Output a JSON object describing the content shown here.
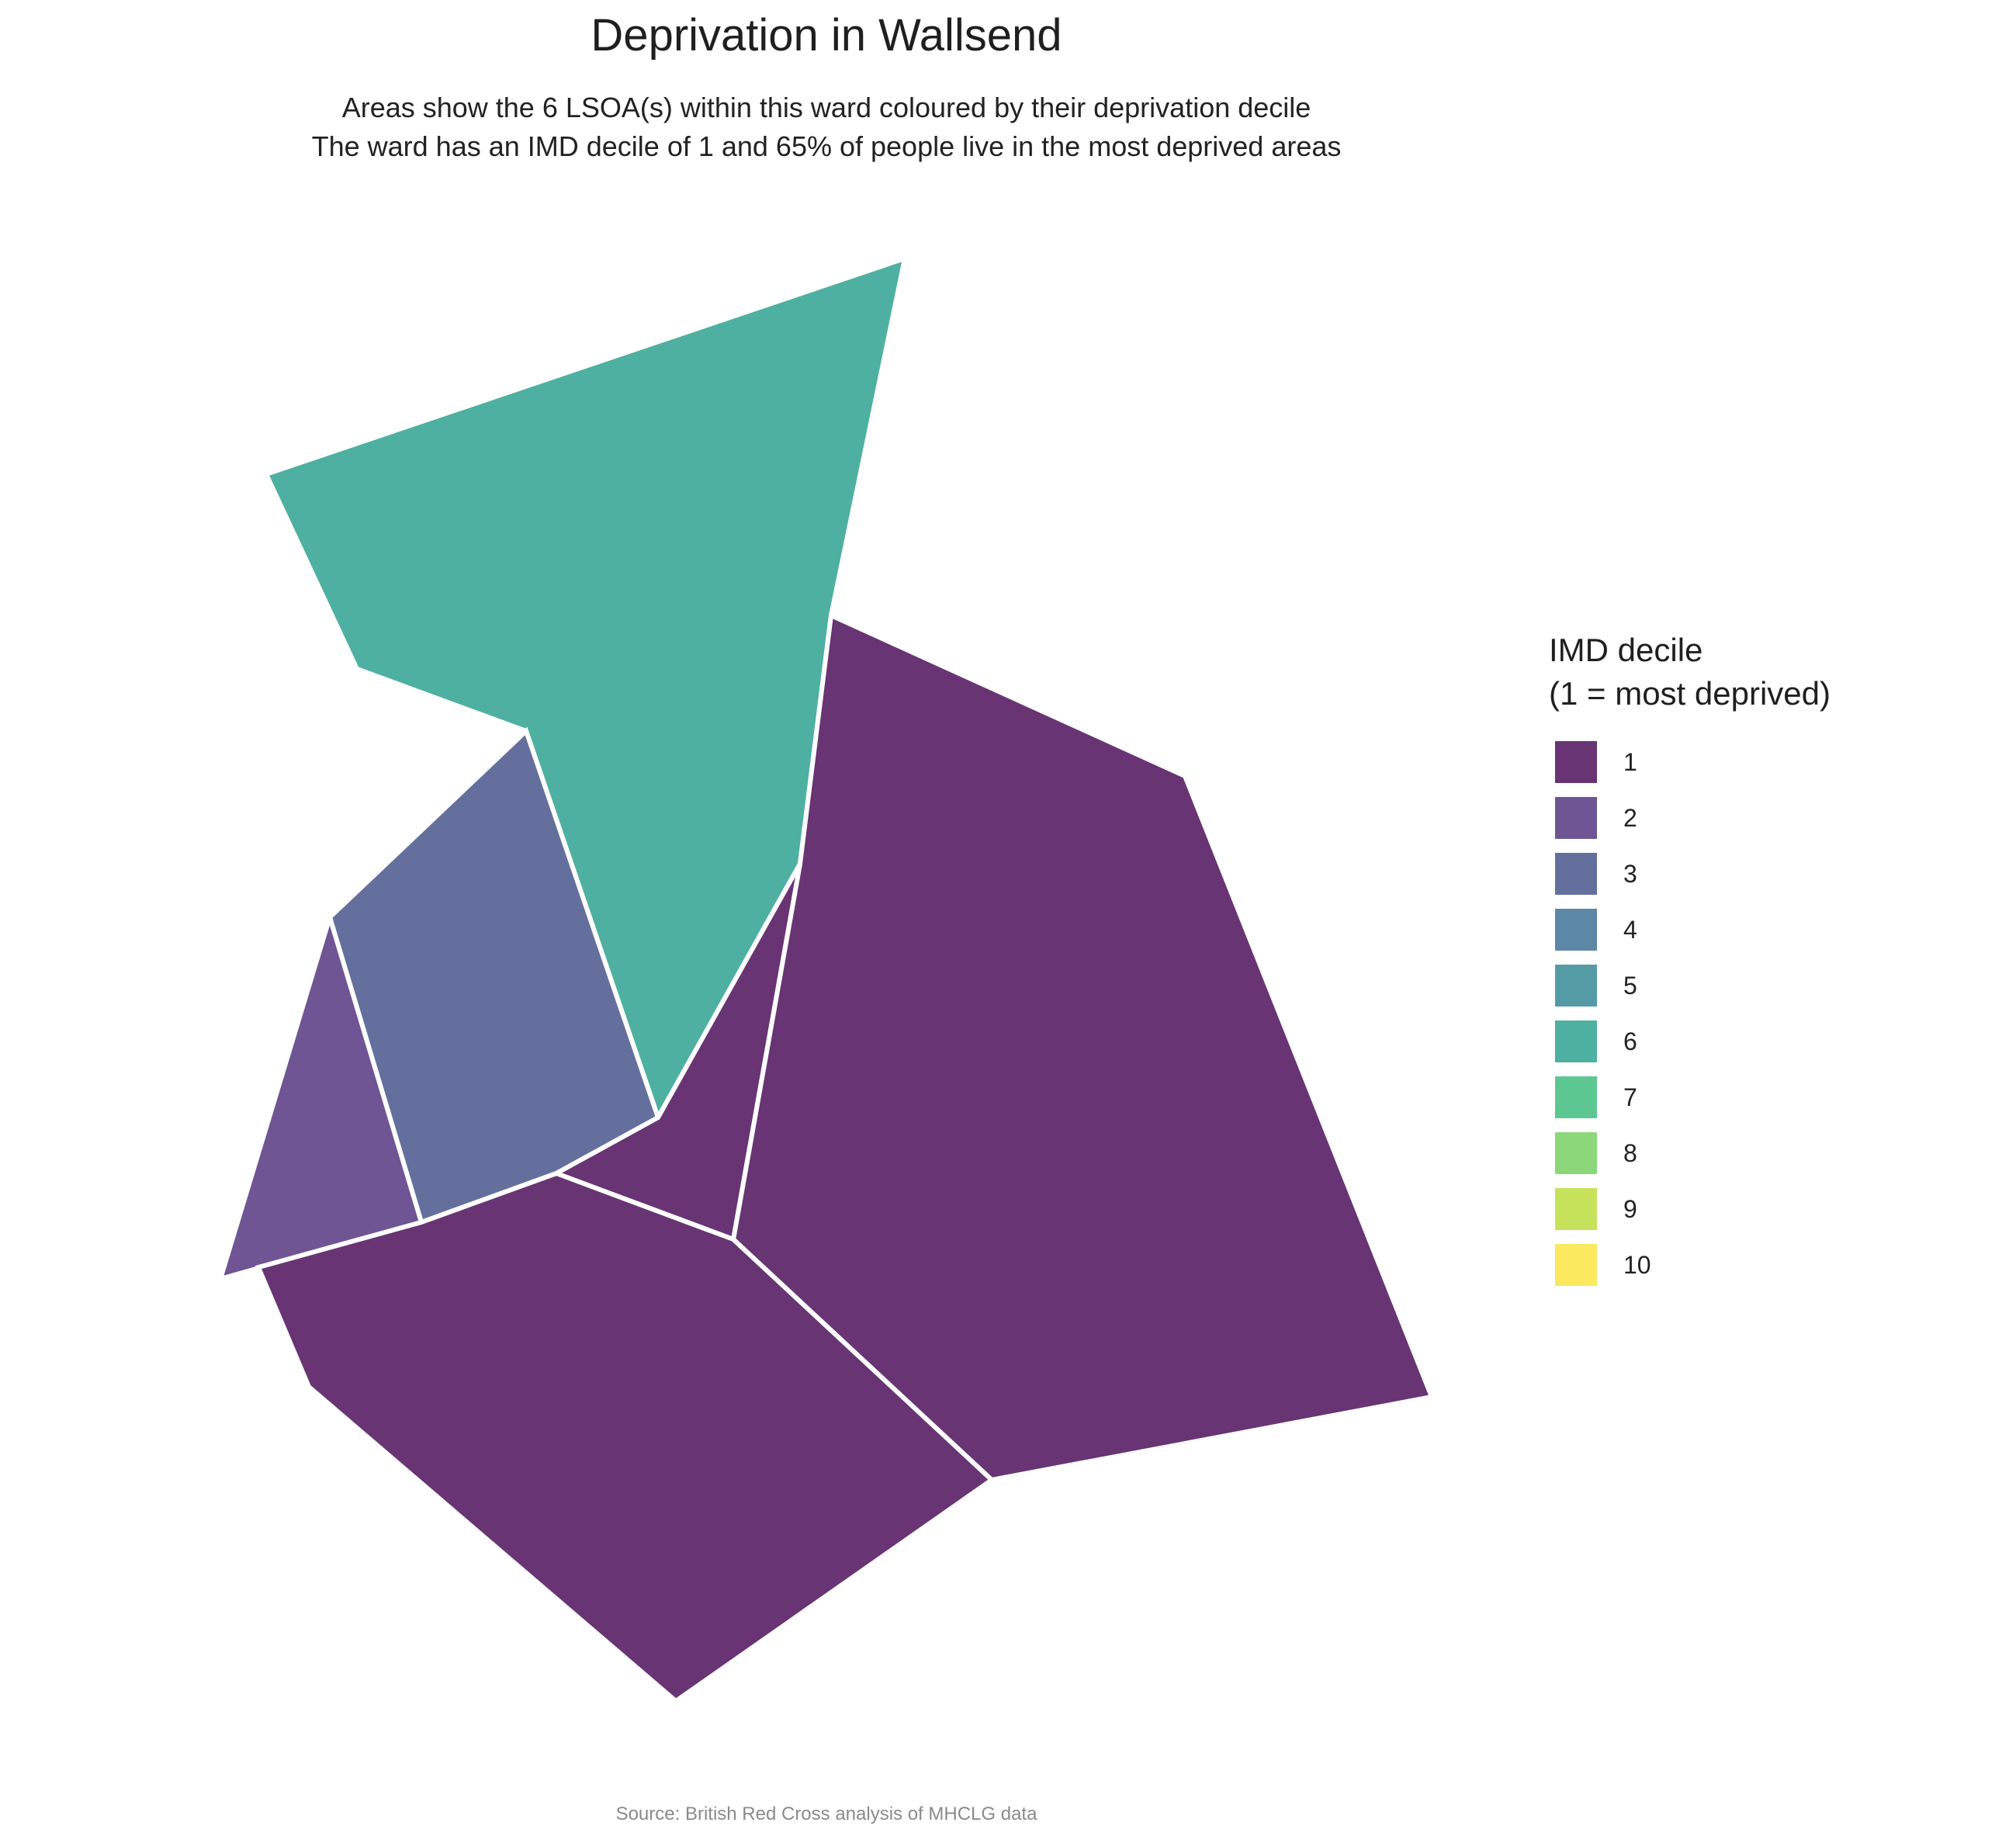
{
  "title": "Deprivation in Wallsend",
  "subtitle": {
    "line1": "Areas show the 6 LSOA(s) within this ward coloured by their deprivation decile",
    "line2": "The ward has an IMD decile of 1 and 65% of people live in the most deprived areas"
  },
  "legend": {
    "title_line1": "IMD decile",
    "title_line2": "(1 = most deprived)",
    "items": [
      {
        "label": "1",
        "color": "#683474"
      },
      {
        "label": "2",
        "color": "#6f5593"
      },
      {
        "label": "3",
        "color": "#646f9d"
      },
      {
        "label": "4",
        "color": "#5c87a6"
      },
      {
        "label": "5",
        "color": "#559ba6"
      },
      {
        "label": "6",
        "color": "#4eb0a0"
      },
      {
        "label": "7",
        "color": "#5dc791"
      },
      {
        "label": "8",
        "color": "#8cd779"
      },
      {
        "label": "9",
        "color": "#c6e25a"
      },
      {
        "label": "10",
        "color": "#fae85f"
      }
    ]
  },
  "map": {
    "areas": [
      {
        "id": "lsoa-decile-6-north",
        "decile": 6
      },
      {
        "id": "lsoa-decile-1-east",
        "decile": 1
      },
      {
        "id": "lsoa-decile-3-west",
        "decile": 3
      },
      {
        "id": "lsoa-decile-2-southwest",
        "decile": 2
      },
      {
        "id": "lsoa-decile-1-central",
        "decile": 1
      },
      {
        "id": "lsoa-decile-1-south",
        "decile": 1
      }
    ]
  },
  "caption": "Source: British Red Cross analysis of MHCLG data"
}
